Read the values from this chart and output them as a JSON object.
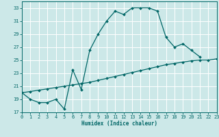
{
  "xlabel": "Humidex (Indice chaleur)",
  "background_color": "#cce8e8",
  "grid_color": "#ffffff",
  "line_color": "#006666",
  "line1_x": [
    0,
    1,
    2,
    3,
    4,
    5,
    6,
    7,
    8,
    9,
    10,
    11,
    12,
    13,
    14,
    15,
    16,
    17,
    18,
    19,
    20,
    21
  ],
  "line1_y": [
    20.0,
    19.0,
    18.5,
    18.5,
    19.0,
    17.5,
    23.5,
    20.5,
    26.5,
    29.0,
    31.0,
    32.5,
    32.0,
    33.0,
    33.0,
    33.0,
    32.5,
    28.5,
    27.0,
    27.5,
    26.5,
    25.5
  ],
  "line2_x": [
    0,
    1,
    2,
    3,
    4,
    5,
    6,
    7,
    8,
    9,
    10,
    11,
    12,
    13,
    14,
    15,
    16,
    17,
    18,
    19,
    20,
    21,
    22,
    23
  ],
  "line2_y": [
    20.0,
    20.2,
    20.4,
    20.6,
    20.8,
    21.0,
    21.2,
    21.4,
    21.6,
    21.9,
    22.2,
    22.5,
    22.8,
    23.1,
    23.4,
    23.7,
    24.0,
    24.3,
    24.5,
    24.7,
    24.9,
    25.0,
    25.0,
    25.2
  ],
  "xlim": [
    0,
    23
  ],
  "ylim": [
    17,
    34
  ],
  "yticks": [
    17,
    19,
    21,
    23,
    25,
    27,
    29,
    31,
    33
  ],
  "xticks": [
    0,
    1,
    2,
    3,
    4,
    5,
    6,
    7,
    8,
    9,
    10,
    11,
    12,
    13,
    14,
    15,
    16,
    17,
    18,
    19,
    20,
    21,
    22,
    23
  ],
  "xlabel_fontsize": 5.5,
  "tick_fontsize": 5.0
}
